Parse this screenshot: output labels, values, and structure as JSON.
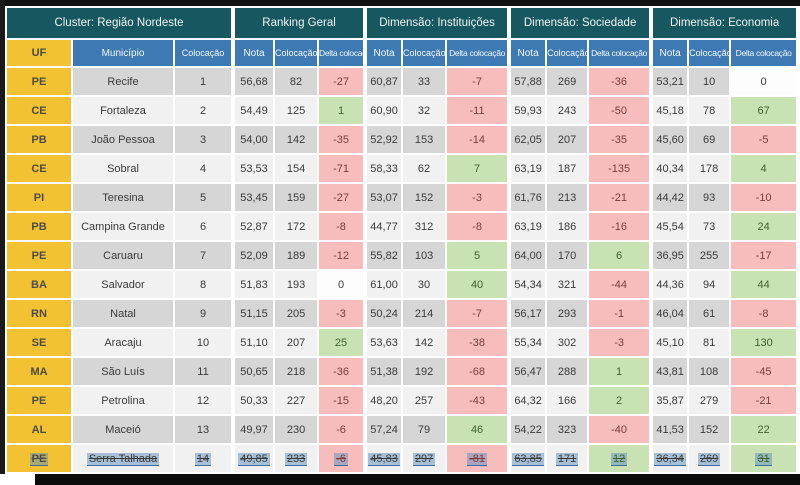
{
  "header": {
    "groups": [
      {
        "label": "Cluster: Região Nordeste"
      },
      {
        "label": "Ranking Geral"
      },
      {
        "label": "Dimensão: Instituições"
      },
      {
        "label": "Dimensão: Sociedade"
      },
      {
        "label": "Dimensão: Economia"
      }
    ],
    "sub": {
      "uf": "UF",
      "municipio": "Município",
      "colocacao": "Colocação",
      "nota": "Nota",
      "delta": "Delta colocação"
    }
  },
  "chart_data": {
    "type": "table",
    "title": "Cluster: Região Nordeste",
    "column_groups": [
      "Cluster: Região Nordeste",
      "Ranking Geral",
      "Dimensão: Instituições",
      "Dimensão: Sociedade",
      "Dimensão: Economia"
    ],
    "columns": [
      "UF",
      "Município",
      "Colocação",
      "Nota",
      "Colocação",
      "Delta colocação",
      "Nota",
      "Colocação",
      "Delta colocação",
      "Nota",
      "Colocação",
      "Delta colocação",
      "Nota",
      "Colocação",
      "Delta colocação"
    ],
    "rows": [
      {
        "uf": "PE",
        "municipio": "Recife",
        "colocacao": "1",
        "ranking_geral": {
          "nota": "56,68",
          "colocacao": "82",
          "delta": "-27",
          "delta_state": "neg"
        },
        "instituicoes": {
          "nota": "60,87",
          "colocacao": "33",
          "delta": "-7",
          "delta_state": "neg"
        },
        "sociedade": {
          "nota": "57,88",
          "colocacao": "269",
          "delta": "-36",
          "delta_state": "neg"
        },
        "economia": {
          "nota": "53,21",
          "colocacao": "10",
          "delta": "0",
          "delta_state": "zero"
        },
        "selected": false
      },
      {
        "uf": "CE",
        "municipio": "Fortaleza",
        "colocacao": "2",
        "ranking_geral": {
          "nota": "54,49",
          "colocacao": "125",
          "delta": "1",
          "delta_state": "pos"
        },
        "instituicoes": {
          "nota": "60,90",
          "colocacao": "32",
          "delta": "-11",
          "delta_state": "neg"
        },
        "sociedade": {
          "nota": "59,93",
          "colocacao": "243",
          "delta": "-50",
          "delta_state": "neg"
        },
        "economia": {
          "nota": "45,18",
          "colocacao": "78",
          "delta": "67",
          "delta_state": "pos"
        },
        "selected": false
      },
      {
        "uf": "PB",
        "municipio": "João Pessoa",
        "colocacao": "3",
        "ranking_geral": {
          "nota": "54,00",
          "colocacao": "142",
          "delta": "-35",
          "delta_state": "neg"
        },
        "instituicoes": {
          "nota": "52,92",
          "colocacao": "153",
          "delta": "-14",
          "delta_state": "neg"
        },
        "sociedade": {
          "nota": "62,05",
          "colocacao": "207",
          "delta": "-35",
          "delta_state": "neg"
        },
        "economia": {
          "nota": "45,60",
          "colocacao": "69",
          "delta": "-5",
          "delta_state": "neg"
        },
        "selected": false
      },
      {
        "uf": "CE",
        "municipio": "Sobral",
        "colocacao": "4",
        "ranking_geral": {
          "nota": "53,53",
          "colocacao": "154",
          "delta": "-71",
          "delta_state": "neg"
        },
        "instituicoes": {
          "nota": "58,33",
          "colocacao": "62",
          "delta": "7",
          "delta_state": "pos"
        },
        "sociedade": {
          "nota": "63,19",
          "colocacao": "187",
          "delta": "-135",
          "delta_state": "neg"
        },
        "economia": {
          "nota": "40,34",
          "colocacao": "178",
          "delta": "4",
          "delta_state": "pos"
        },
        "selected": false
      },
      {
        "uf": "PI",
        "municipio": "Teresina",
        "colocacao": "5",
        "ranking_geral": {
          "nota": "53,45",
          "colocacao": "159",
          "delta": "-27",
          "delta_state": "neg"
        },
        "instituicoes": {
          "nota": "53,07",
          "colocacao": "152",
          "delta": "-3",
          "delta_state": "neg"
        },
        "sociedade": {
          "nota": "61,76",
          "colocacao": "213",
          "delta": "-21",
          "delta_state": "neg"
        },
        "economia": {
          "nota": "44,42",
          "colocacao": "93",
          "delta": "-10",
          "delta_state": "neg"
        },
        "selected": false
      },
      {
        "uf": "PB",
        "municipio": "Campina Grande",
        "colocacao": "6",
        "ranking_geral": {
          "nota": "52,87",
          "colocacao": "172",
          "delta": "-8",
          "delta_state": "neg"
        },
        "instituicoes": {
          "nota": "44,77",
          "colocacao": "312",
          "delta": "-8",
          "delta_state": "neg"
        },
        "sociedade": {
          "nota": "63,19",
          "colocacao": "186",
          "delta": "-16",
          "delta_state": "neg"
        },
        "economia": {
          "nota": "45,54",
          "colocacao": "73",
          "delta": "24",
          "delta_state": "pos"
        },
        "selected": false
      },
      {
        "uf": "PE",
        "municipio": "Caruaru",
        "colocacao": "7",
        "ranking_geral": {
          "nota": "52,09",
          "colocacao": "189",
          "delta": "-12",
          "delta_state": "neg"
        },
        "instituicoes": {
          "nota": "55,82",
          "colocacao": "103",
          "delta": "5",
          "delta_state": "pos"
        },
        "sociedade": {
          "nota": "64,00",
          "colocacao": "170",
          "delta": "6",
          "delta_state": "pos"
        },
        "economia": {
          "nota": "36,95",
          "colocacao": "255",
          "delta": "-17",
          "delta_state": "neg"
        },
        "selected": false
      },
      {
        "uf": "BA",
        "municipio": "Salvador",
        "colocacao": "8",
        "ranking_geral": {
          "nota": "51,83",
          "colocacao": "193",
          "delta": "0",
          "delta_state": "zero"
        },
        "instituicoes": {
          "nota": "61,00",
          "colocacao": "30",
          "delta": "40",
          "delta_state": "pos"
        },
        "sociedade": {
          "nota": "54,34",
          "colocacao": "321",
          "delta": "-44",
          "delta_state": "neg"
        },
        "economia": {
          "nota": "44,36",
          "colocacao": "94",
          "delta": "44",
          "delta_state": "pos"
        },
        "selected": false
      },
      {
        "uf": "RN",
        "municipio": "Natal",
        "colocacao": "9",
        "ranking_geral": {
          "nota": "51,15",
          "colocacao": "205",
          "delta": "-3",
          "delta_state": "neg"
        },
        "instituicoes": {
          "nota": "50,24",
          "colocacao": "214",
          "delta": "-7",
          "delta_state": "neg"
        },
        "sociedade": {
          "nota": "56,17",
          "colocacao": "293",
          "delta": "-1",
          "delta_state": "neg"
        },
        "economia": {
          "nota": "46,04",
          "colocacao": "61",
          "delta": "-8",
          "delta_state": "neg"
        },
        "selected": false
      },
      {
        "uf": "SE",
        "municipio": "Aracaju",
        "colocacao": "10",
        "ranking_geral": {
          "nota": "51,10",
          "colocacao": "207",
          "delta": "25",
          "delta_state": "pos"
        },
        "instituicoes": {
          "nota": "53,63",
          "colocacao": "142",
          "delta": "-38",
          "delta_state": "neg"
        },
        "sociedade": {
          "nota": "55,34",
          "colocacao": "302",
          "delta": "-3",
          "delta_state": "neg"
        },
        "economia": {
          "nota": "45,10",
          "colocacao": "81",
          "delta": "130",
          "delta_state": "pos"
        },
        "selected": false
      },
      {
        "uf": "MA",
        "municipio": "São Luís",
        "colocacao": "11",
        "ranking_geral": {
          "nota": "50,65",
          "colocacao": "218",
          "delta": "-36",
          "delta_state": "neg"
        },
        "instituicoes": {
          "nota": "51,38",
          "colocacao": "192",
          "delta": "-68",
          "delta_state": "neg"
        },
        "sociedade": {
          "nota": "56,47",
          "colocacao": "288",
          "delta": "1",
          "delta_state": "pos"
        },
        "economia": {
          "nota": "43,81",
          "colocacao": "108",
          "delta": "-45",
          "delta_state": "neg"
        },
        "selected": false
      },
      {
        "uf": "PE",
        "municipio": "Petrolina",
        "colocacao": "12",
        "ranking_geral": {
          "nota": "50,33",
          "colocacao": "227",
          "delta": "-15",
          "delta_state": "neg"
        },
        "instituicoes": {
          "nota": "48,20",
          "colocacao": "257",
          "delta": "-43",
          "delta_state": "neg"
        },
        "sociedade": {
          "nota": "64,32",
          "colocacao": "166",
          "delta": "2",
          "delta_state": "pos"
        },
        "economia": {
          "nota": "35,87",
          "colocacao": "279",
          "delta": "-21",
          "delta_state": "neg"
        },
        "selected": false
      },
      {
        "uf": "AL",
        "municipio": "Maceió",
        "colocacao": "13",
        "ranking_geral": {
          "nota": "49,97",
          "colocacao": "230",
          "delta": "-6",
          "delta_state": "neg"
        },
        "instituicoes": {
          "nota": "57,24",
          "colocacao": "79",
          "delta": "46",
          "delta_state": "pos"
        },
        "sociedade": {
          "nota": "54,22",
          "colocacao": "323",
          "delta": "-40",
          "delta_state": "neg"
        },
        "economia": {
          "nota": "41,53",
          "colocacao": "152",
          "delta": "22",
          "delta_state": "pos"
        },
        "selected": false
      },
      {
        "uf": "PE",
        "municipio": "Serra Talhada",
        "colocacao": "14",
        "ranking_geral": {
          "nota": "49,85",
          "colocacao": "233",
          "delta": "-6",
          "delta_state": "neg"
        },
        "instituicoes": {
          "nota": "45,83",
          "colocacao": "297",
          "delta": "-81",
          "delta_state": "neg"
        },
        "sociedade": {
          "nota": "63,85",
          "colocacao": "171",
          "delta": "12",
          "delta_state": "pos"
        },
        "economia": {
          "nota": "36,34",
          "colocacao": "269",
          "delta": "31",
          "delta_state": "pos"
        },
        "selected": true
      }
    ]
  },
  "colors": {
    "header_teal": "#17575f",
    "header_blue": "#3d79b2",
    "uf_yellow": "#f2c233",
    "row_dark": "#d6d6d6",
    "row_light": "#f1f1f1",
    "delta_negative": "#f7bdbd",
    "delta_positive": "#c8e2b4",
    "delta_zero": "#fdfdfd",
    "selection_highlight": "#5e90be"
  }
}
